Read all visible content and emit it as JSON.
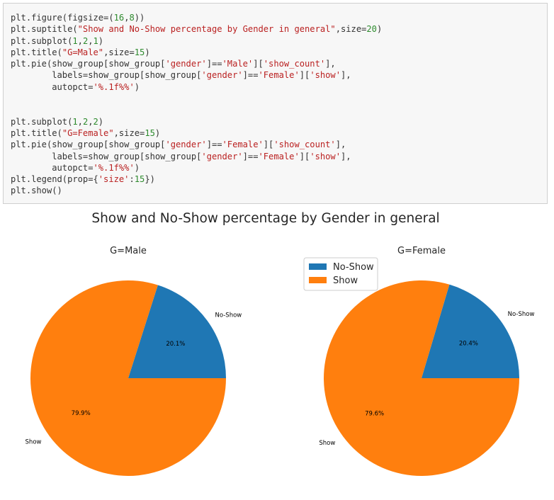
{
  "code_cell": {
    "lines": [
      [
        {
          "t": "plt.figure(figsize=("
        },
        {
          "t": "16",
          "c": "n"
        },
        {
          "t": ","
        },
        {
          "t": "8",
          "c": "n"
        },
        {
          "t": "))"
        }
      ],
      [
        {
          "t": "plt.suptitle("
        },
        {
          "t": "\"Show and No-Show percentage by Gender in general\"",
          "c": "s"
        },
        {
          "t": ",size="
        },
        {
          "t": "20",
          "c": "n"
        },
        {
          "t": ")"
        }
      ],
      [
        {
          "t": "plt.subplot("
        },
        {
          "t": "1",
          "c": "n"
        },
        {
          "t": ","
        },
        {
          "t": "2",
          "c": "n"
        },
        {
          "t": ","
        },
        {
          "t": "1",
          "c": "n"
        },
        {
          "t": ")"
        }
      ],
      [
        {
          "t": "plt.title("
        },
        {
          "t": "\"G=Male\"",
          "c": "s"
        },
        {
          "t": ",size="
        },
        {
          "t": "15",
          "c": "n"
        },
        {
          "t": ")"
        }
      ],
      [
        {
          "t": "plt.pie(show_group[show_group["
        },
        {
          "t": "'gender'",
          "c": "s"
        },
        {
          "t": "]=="
        },
        {
          "t": "'Male'",
          "c": "s"
        },
        {
          "t": "]["
        },
        {
          "t": "'show_count'",
          "c": "s"
        },
        {
          "t": "],"
        }
      ],
      [
        {
          "t": "        labels=show_group[show_group["
        },
        {
          "t": "'gender'",
          "c": "s"
        },
        {
          "t": "]=="
        },
        {
          "t": "'Female'",
          "c": "s"
        },
        {
          "t": "]["
        },
        {
          "t": "'show'",
          "c": "s"
        },
        {
          "t": "],"
        }
      ],
      [
        {
          "t": "        autopct="
        },
        {
          "t": "'%.1f%%'",
          "c": "s"
        },
        {
          "t": ")"
        }
      ],
      [
        {
          "t": ""
        }
      ],
      [
        {
          "t": ""
        }
      ],
      [
        {
          "t": "plt.subplot("
        },
        {
          "t": "1",
          "c": "n"
        },
        {
          "t": ","
        },
        {
          "t": "2",
          "c": "n"
        },
        {
          "t": ","
        },
        {
          "t": "2",
          "c": "n"
        },
        {
          "t": ")"
        }
      ],
      [
        {
          "t": "plt.title("
        },
        {
          "t": "\"G=Female\"",
          "c": "s"
        },
        {
          "t": ",size="
        },
        {
          "t": "15",
          "c": "n"
        },
        {
          "t": ")"
        }
      ],
      [
        {
          "t": "plt.pie(show_group[show_group["
        },
        {
          "t": "'gender'",
          "c": "s"
        },
        {
          "t": "]=="
        },
        {
          "t": "'Female'",
          "c": "s"
        },
        {
          "t": "]["
        },
        {
          "t": "'show_count'",
          "c": "s"
        },
        {
          "t": "],"
        }
      ],
      [
        {
          "t": "        labels=show_group[show_group["
        },
        {
          "t": "'gender'",
          "c": "s"
        },
        {
          "t": "]=="
        },
        {
          "t": "'Female'",
          "c": "s"
        },
        {
          "t": "]["
        },
        {
          "t": "'show'",
          "c": "s"
        },
        {
          "t": "],"
        }
      ],
      [
        {
          "t": "        autopct="
        },
        {
          "t": "'%.1f%%'",
          "c": "s"
        },
        {
          "t": ")"
        }
      ],
      [
        {
          "t": "plt.legend(prop={"
        },
        {
          "t": "'size'",
          "c": "s"
        },
        {
          "t": ":"
        },
        {
          "t": "15",
          "c": "n"
        },
        {
          "t": "})"
        }
      ],
      [
        {
          "t": "plt.show()"
        }
      ]
    ]
  },
  "chart_data": {
    "suptitle": "Show and No-Show percentage by Gender in general",
    "colors": {
      "No-Show": "#1f77b4",
      "Show": "#ff7f0e"
    },
    "legend": {
      "entries": [
        "No-Show",
        "Show"
      ],
      "location": "upper-left of right subplot"
    },
    "charts": [
      {
        "type": "pie",
        "title": "G=Male",
        "slices": [
          {
            "label": "No-Show",
            "value": 20.1,
            "pct_text": "20.1%"
          },
          {
            "label": "Show",
            "value": 79.9,
            "pct_text": "79.9%"
          }
        ]
      },
      {
        "type": "pie",
        "title": "G=Female",
        "slices": [
          {
            "label": "No-Show",
            "value": 20.4,
            "pct_text": "20.4%"
          },
          {
            "label": "Show",
            "value": 79.6,
            "pct_text": "79.6%"
          }
        ]
      }
    ]
  }
}
